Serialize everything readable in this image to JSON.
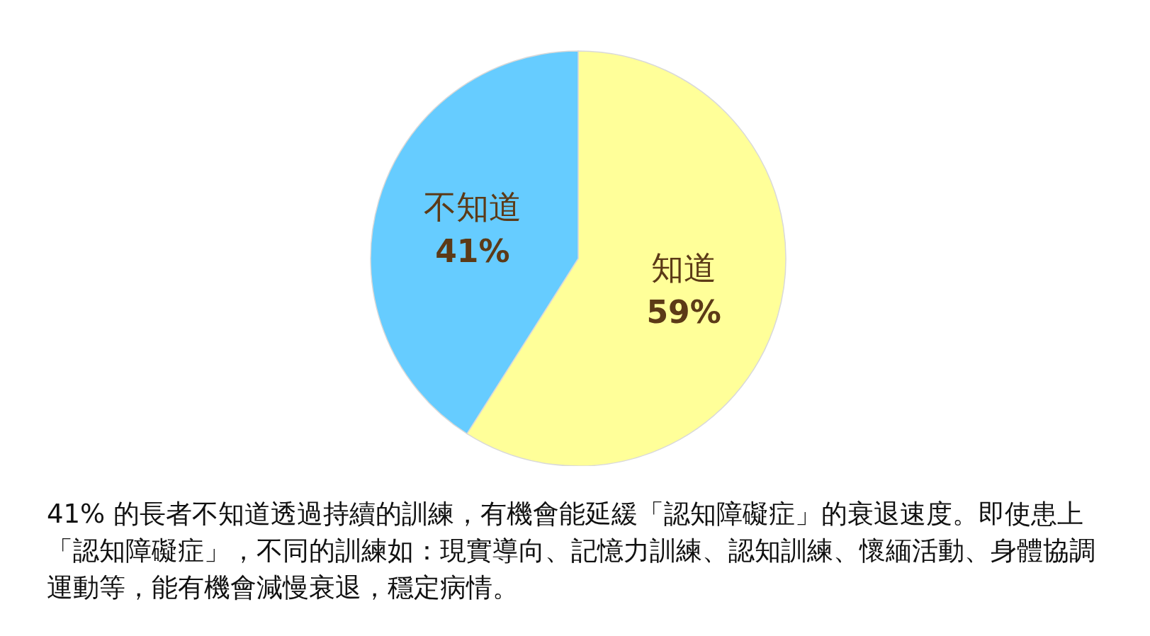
{
  "chart_data": {
    "type": "pie",
    "categories": [
      "知道",
      "不知道"
    ],
    "values": [
      59,
      41
    ],
    "value_labels": [
      "59%",
      "41%"
    ],
    "colors": [
      "#ffff99",
      "#66ccff"
    ],
    "legend": false,
    "annotations": [
      "41% 的長者不知道透過持續的訓練，有機會能延緩「認知障礙症」的衰退速度。即使患上「認知障礙症」，不同的訓練如：現實導向、記憶力訓練、認知訓練、懷緬活動、身體協調運動等，能有機會減慢衰退，穩定病情。"
    ]
  }
}
